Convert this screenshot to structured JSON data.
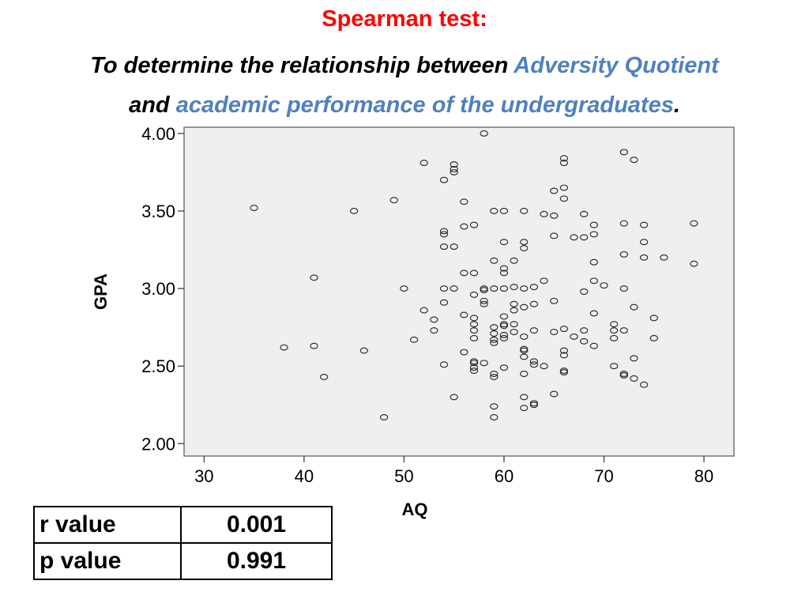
{
  "title": {
    "line1": "Spearman test:",
    "line2_prefix": "To determine the relationship between ",
    "line2_highlight": "Adversity Quotient",
    "line3_prefix": "and ",
    "line3_highlight": "academic performance of the undergraduates",
    "line3_suffix": "."
  },
  "colors": {
    "title_red": "#ff0000",
    "highlight_blue": "#4f81bd",
    "plot_bg": "#efefef"
  },
  "stats_table": [
    {
      "label": "r value",
      "value": "0.001"
    },
    {
      "label": "p value",
      "value": "0.991"
    }
  ],
  "chart_data": {
    "type": "scatter",
    "xlabel": "AQ",
    "ylabel": "GPA",
    "xlim": [
      28,
      83
    ],
    "ylim": [
      1.92,
      4.04
    ],
    "xticks": [
      "30",
      "40",
      "50",
      "60",
      "70",
      "80"
    ],
    "yticks": [
      "2.00",
      "2.50",
      "3.00",
      "3.50",
      "4.00"
    ],
    "grid": false,
    "points": [
      [
        35,
        3.52
      ],
      [
        38,
        2.62
      ],
      [
        41,
        3.07
      ],
      [
        41,
        2.63
      ],
      [
        42,
        2.43
      ],
      [
        45,
        3.5
      ],
      [
        46,
        2.6
      ],
      [
        48,
        2.17
      ],
      [
        49,
        3.57
      ],
      [
        50,
        3.0
      ],
      [
        51,
        2.67
      ],
      [
        52,
        3.81
      ],
      [
        52,
        2.86
      ],
      [
        53,
        2.8
      ],
      [
        53,
        2.73
      ],
      [
        54,
        3.7
      ],
      [
        54,
        3.37
      ],
      [
        54,
        3.35
      ],
      [
        54,
        3.27
      ],
      [
        54,
        3.0
      ],
      [
        54,
        2.91
      ],
      [
        54,
        2.51
      ],
      [
        55,
        3.8
      ],
      [
        55,
        3.77
      ],
      [
        55,
        3.75
      ],
      [
        55,
        3.27
      ],
      [
        55,
        3.0
      ],
      [
        55,
        2.3
      ],
      [
        56,
        3.56
      ],
      [
        56,
        3.4
      ],
      [
        56,
        3.1
      ],
      [
        56,
        2.83
      ],
      [
        56,
        2.59
      ],
      [
        57,
        3.41
      ],
      [
        57,
        3.1
      ],
      [
        57,
        2.96
      ],
      [
        57,
        2.81
      ],
      [
        57,
        2.77
      ],
      [
        57,
        2.73
      ],
      [
        57,
        2.68
      ],
      [
        57,
        2.53
      ],
      [
        57,
        2.52
      ],
      [
        57,
        2.49
      ],
      [
        57,
        2.47
      ],
      [
        58,
        4.0
      ],
      [
        58,
        3.0
      ],
      [
        58,
        2.99
      ],
      [
        58,
        2.92
      ],
      [
        58,
        2.9
      ],
      [
        58,
        2.52
      ],
      [
        59,
        3.5
      ],
      [
        59,
        3.18
      ],
      [
        59,
        3.0
      ],
      [
        59,
        2.75
      ],
      [
        59,
        2.71
      ],
      [
        59,
        2.67
      ],
      [
        59,
        2.65
      ],
      [
        59,
        2.45
      ],
      [
        59,
        2.43
      ],
      [
        59,
        2.24
      ],
      [
        59,
        2.17
      ],
      [
        60,
        3.5
      ],
      [
        60,
        3.3
      ],
      [
        60,
        3.13
      ],
      [
        60,
        3.1
      ],
      [
        60,
        3.0
      ],
      [
        60,
        2.82
      ],
      [
        60,
        2.77
      ],
      [
        60,
        2.76
      ],
      [
        60,
        2.7
      ],
      [
        60,
        2.68
      ],
      [
        60,
        2.49
      ],
      [
        61,
        3.18
      ],
      [
        61,
        3.01
      ],
      [
        61,
        2.9
      ],
      [
        61,
        2.86
      ],
      [
        61,
        2.77
      ],
      [
        61,
        2.72
      ],
      [
        62,
        3.5
      ],
      [
        62,
        3.3
      ],
      [
        62,
        3.26
      ],
      [
        62,
        3.0
      ],
      [
        62,
        2.88
      ],
      [
        62,
        2.69
      ],
      [
        62,
        2.61
      ],
      [
        62,
        2.6
      ],
      [
        62,
        2.56
      ],
      [
        62,
        2.45
      ],
      [
        62,
        2.3
      ],
      [
        62,
        2.23
      ],
      [
        63,
        3.01
      ],
      [
        63,
        2.9
      ],
      [
        63,
        2.73
      ],
      [
        63,
        2.53
      ],
      [
        63,
        2.51
      ],
      [
        63,
        2.26
      ],
      [
        63,
        2.25
      ],
      [
        64,
        3.48
      ],
      [
        64,
        3.05
      ],
      [
        64,
        2.5
      ],
      [
        65,
        3.63
      ],
      [
        65,
        3.47
      ],
      [
        65,
        3.34
      ],
      [
        65,
        2.92
      ],
      [
        65,
        2.72
      ],
      [
        65,
        2.32
      ],
      [
        66,
        3.84
      ],
      [
        66,
        3.81
      ],
      [
        66,
        3.65
      ],
      [
        66,
        3.58
      ],
      [
        66,
        2.74
      ],
      [
        66,
        2.6
      ],
      [
        66,
        2.57
      ],
      [
        66,
        2.47
      ],
      [
        66,
        2.46
      ],
      [
        67,
        3.33
      ],
      [
        67,
        2.69
      ],
      [
        68,
        3.48
      ],
      [
        68,
        3.33
      ],
      [
        68,
        2.98
      ],
      [
        68,
        2.73
      ],
      [
        68,
        2.66
      ],
      [
        69,
        3.41
      ],
      [
        69,
        3.35
      ],
      [
        69,
        3.17
      ],
      [
        69,
        3.05
      ],
      [
        69,
        2.84
      ],
      [
        69,
        2.63
      ],
      [
        70,
        3.02
      ],
      [
        71,
        2.77
      ],
      [
        71,
        2.73
      ],
      [
        71,
        2.68
      ],
      [
        71,
        2.5
      ],
      [
        72,
        3.88
      ],
      [
        72,
        3.42
      ],
      [
        72,
        3.22
      ],
      [
        72,
        3.0
      ],
      [
        72,
        2.73
      ],
      [
        72,
        2.45
      ],
      [
        72,
        2.44
      ],
      [
        73,
        3.83
      ],
      [
        73,
        2.88
      ],
      [
        73,
        2.55
      ],
      [
        73,
        2.42
      ],
      [
        74,
        3.41
      ],
      [
        74,
        3.3
      ],
      [
        74,
        3.2
      ],
      [
        74,
        2.38
      ],
      [
        75,
        2.81
      ],
      [
        75,
        2.68
      ],
      [
        76,
        3.2
      ],
      [
        79,
        3.42
      ],
      [
        79,
        3.16
      ]
    ]
  }
}
